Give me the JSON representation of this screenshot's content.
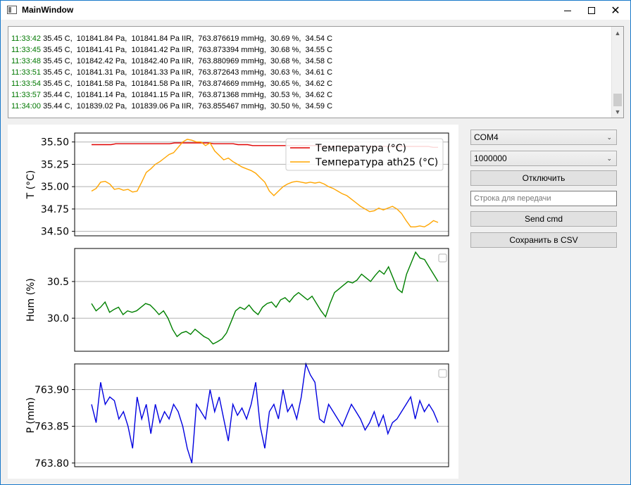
{
  "window": {
    "title": "MainWindow"
  },
  "log": {
    "lines": [
      {
        "time": "11:33:42",
        "text": " 35.45 C,  101841.84 Pa,  101841.84 Pa IIR,  763.876619 mmHg,  30.69 %,  34.54 C"
      },
      {
        "time": "11:33:45",
        "text": " 35.45 C,  101841.41 Pa,  101841.42 Pa IIR,  763.873394 mmHg,  30.68 %,  34.55 C"
      },
      {
        "time": "11:33:48",
        "text": " 35.45 C,  101842.42 Pa,  101842.40 Pa IIR,  763.880969 mmHg,  30.68 %,  34.58 C"
      },
      {
        "time": "11:33:51",
        "text": " 35.45 C,  101841.31 Pa,  101841.33 Pa IIR,  763.872643 mmHg,  30.63 %,  34.61 C"
      },
      {
        "time": "11:33:54",
        "text": " 35.45 C,  101841.58 Pa,  101841.58 Pa IIR,  763.874669 mmHg,  30.65 %,  34.62 C"
      },
      {
        "time": "11:33:57",
        "text": " 35.44 C,  101841.14 Pa,  101841.15 Pa IIR,  763.871368 mmHg,  30.53 %,  34.62 C"
      },
      {
        "time": "11:34:00",
        "text": " 35.44 C,  101839.02 Pa,  101839.06 Pa IIR,  763.855467 mmHg,  30.50 %,  34.59 C"
      }
    ]
  },
  "panel": {
    "port": "COM4",
    "baud": "1000000",
    "disconnect_label": "Отключить",
    "send_input_placeholder": "Строка для передачи",
    "send_label": "Send cmd",
    "save_label": "Сохранить в CSV"
  },
  "colors": {
    "temp": "#e00000",
    "temp_ath25": "#ffa500",
    "hum": "#008000",
    "press": "#0000e0",
    "grid": "#b0b0b0"
  },
  "chart_data": [
    {
      "type": "line",
      "ylabel": "T (°C)",
      "ylim": [
        34.45,
        35.6
      ],
      "yticks": [
        "35.50",
        "35.25",
        "35.00",
        "34.75",
        "34.50"
      ],
      "legend_position": "top-right",
      "series": [
        {
          "name": "Температура (°C)",
          "color": "#e00000",
          "values": [
            35.47,
            35.47,
            35.47,
            35.47,
            35.47,
            35.48,
            35.48,
            35.48,
            35.48,
            35.48,
            35.48,
            35.48,
            35.48,
            35.48,
            35.48,
            35.48,
            35.48,
            35.49,
            35.49,
            35.49,
            35.49,
            35.49,
            35.49,
            35.49,
            35.49,
            35.48,
            35.48,
            35.48,
            35.48,
            35.48,
            35.47,
            35.47,
            35.47,
            35.46,
            35.46,
            35.46,
            35.46,
            35.46,
            35.46,
            35.46,
            35.46,
            35.46,
            35.46,
            35.46,
            35.46,
            35.46,
            35.46,
            35.45,
            35.45,
            35.45,
            35.45,
            35.45,
            35.45,
            35.45,
            35.45,
            35.45,
            35.45,
            35.45,
            35.45,
            35.45,
            35.45,
            35.45,
            35.45,
            35.45,
            35.45,
            35.45,
            35.45,
            35.45,
            35.45,
            35.45,
            35.44,
            35.44
          ]
        },
        {
          "name": "Температура ath25 (°C)",
          "color": "#ffa500",
          "values": [
            34.95,
            34.98,
            35.05,
            35.06,
            35.03,
            34.97,
            34.98,
            34.96,
            34.97,
            34.94,
            34.95,
            35.05,
            35.16,
            35.2,
            35.25,
            35.28,
            35.32,
            35.36,
            35.38,
            35.44,
            35.5,
            35.53,
            35.52,
            35.5,
            35.5,
            35.46,
            35.49,
            35.4,
            35.35,
            35.3,
            35.32,
            35.28,
            35.25,
            35.22,
            35.2,
            35.18,
            35.15,
            35.1,
            35.05,
            34.95,
            34.9,
            34.95,
            35.0,
            35.03,
            35.05,
            35.06,
            35.05,
            35.04,
            35.05,
            35.04,
            35.05,
            35.03,
            35.0,
            34.98,
            34.95,
            34.92,
            34.9,
            34.86,
            34.82,
            34.78,
            34.75,
            34.72,
            34.73,
            34.76,
            34.74,
            34.76,
            34.78,
            34.75,
            34.7,
            34.62,
            34.55,
            34.55,
            34.56,
            34.55,
            34.58,
            34.62,
            34.6
          ]
        }
      ]
    },
    {
      "type": "line",
      "ylabel": "Hum (%)",
      "ylim": [
        29.55,
        30.95
      ],
      "yticks": [
        "30.5",
        "30.0"
      ],
      "series": [
        {
          "name": "",
          "color": "#008000",
          "values": [
            30.2,
            30.1,
            30.15,
            30.22,
            30.08,
            30.12,
            30.15,
            30.05,
            30.1,
            30.08,
            30.1,
            30.15,
            30.2,
            30.18,
            30.12,
            30.05,
            30.1,
            30.0,
            29.85,
            29.75,
            29.8,
            29.82,
            29.78,
            29.85,
            29.8,
            29.75,
            29.72,
            29.65,
            29.68,
            29.72,
            29.8,
            29.95,
            30.1,
            30.15,
            30.12,
            30.18,
            30.1,
            30.05,
            30.15,
            30.2,
            30.22,
            30.15,
            30.25,
            30.28,
            30.22,
            30.3,
            30.35,
            30.3,
            30.25,
            30.3,
            30.2,
            30.1,
            30.02,
            30.2,
            30.35,
            30.4,
            30.45,
            30.5,
            30.48,
            30.52,
            30.6,
            30.55,
            30.5,
            30.58,
            30.65,
            30.6,
            30.7,
            30.55,
            30.4,
            30.35,
            30.6,
            30.75,
            30.9,
            30.82,
            30.8,
            30.7,
            30.6,
            30.5
          ]
        }
      ]
    },
    {
      "type": "line",
      "ylabel": "P (mm)",
      "ylim": [
        763.795,
        763.935
      ],
      "yticks": [
        "763.90",
        "763.85",
        "763.80"
      ],
      "series": [
        {
          "name": "",
          "color": "#0000e0",
          "values": [
            763.88,
            763.855,
            763.91,
            763.88,
            763.89,
            763.885,
            763.86,
            763.87,
            763.85,
            763.82,
            763.89,
            763.86,
            763.88,
            763.84,
            763.88,
            763.855,
            763.87,
            763.86,
            763.88,
            763.87,
            763.85,
            763.82,
            763.8,
            763.88,
            763.87,
            763.86,
            763.9,
            763.87,
            763.89,
            763.86,
            763.83,
            763.88,
            763.865,
            763.875,
            763.86,
            763.88,
            763.91,
            763.85,
            763.82,
            763.87,
            763.88,
            763.86,
            763.9,
            763.87,
            763.88,
            763.86,
            763.89,
            763.935,
            763.92,
            763.91,
            763.86,
            763.855,
            763.88,
            763.87,
            763.86,
            763.85,
            763.865,
            763.88,
            763.87,
            763.86,
            763.845,
            763.855,
            763.87,
            763.85,
            763.865,
            763.84,
            763.855,
            763.86,
            763.87,
            763.88,
            763.89,
            763.86,
            763.885,
            763.87,
            763.88,
            763.87,
            763.855
          ]
        }
      ]
    }
  ]
}
